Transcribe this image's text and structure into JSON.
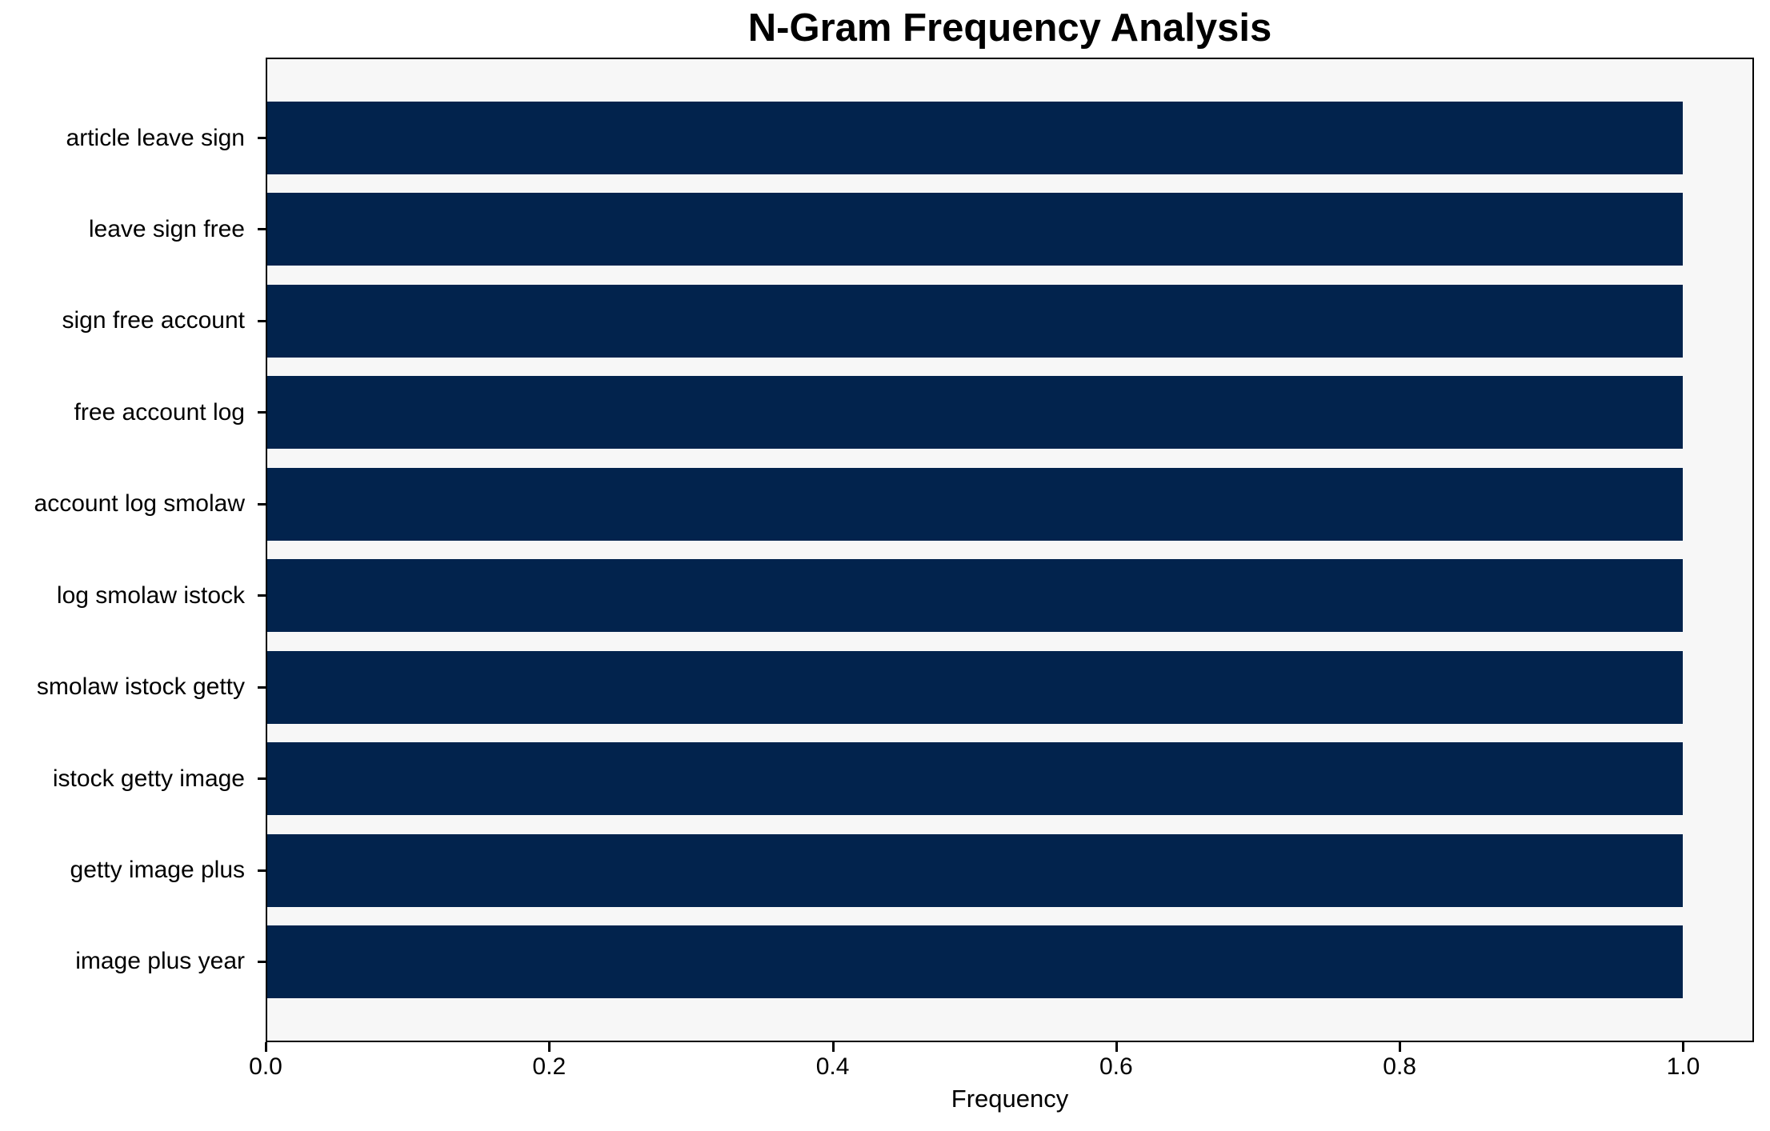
{
  "chart_data": {
    "type": "bar",
    "orientation": "horizontal",
    "title": "N-Gram Frequency Analysis",
    "xlabel": "Frequency",
    "ylabel": "",
    "categories": [
      "article leave sign",
      "leave sign free",
      "sign free account",
      "free account log",
      "account log smolaw",
      "log smolaw istock",
      "smolaw istock getty",
      "istock getty image",
      "getty image plus",
      "image plus year"
    ],
    "values": [
      1.0,
      1.0,
      1.0,
      1.0,
      1.0,
      1.0,
      1.0,
      1.0,
      1.0,
      1.0
    ],
    "xticks": [
      0.0,
      0.2,
      0.4,
      0.6,
      0.8,
      1.0
    ],
    "xlim": [
      0,
      1.05
    ],
    "grid": false,
    "legend": false,
    "colors": {
      "bar": "#02234d",
      "plot_background": "#f7f7f7",
      "figure_background": "#ffffff",
      "spine": "#000000",
      "text": "#000000"
    }
  }
}
